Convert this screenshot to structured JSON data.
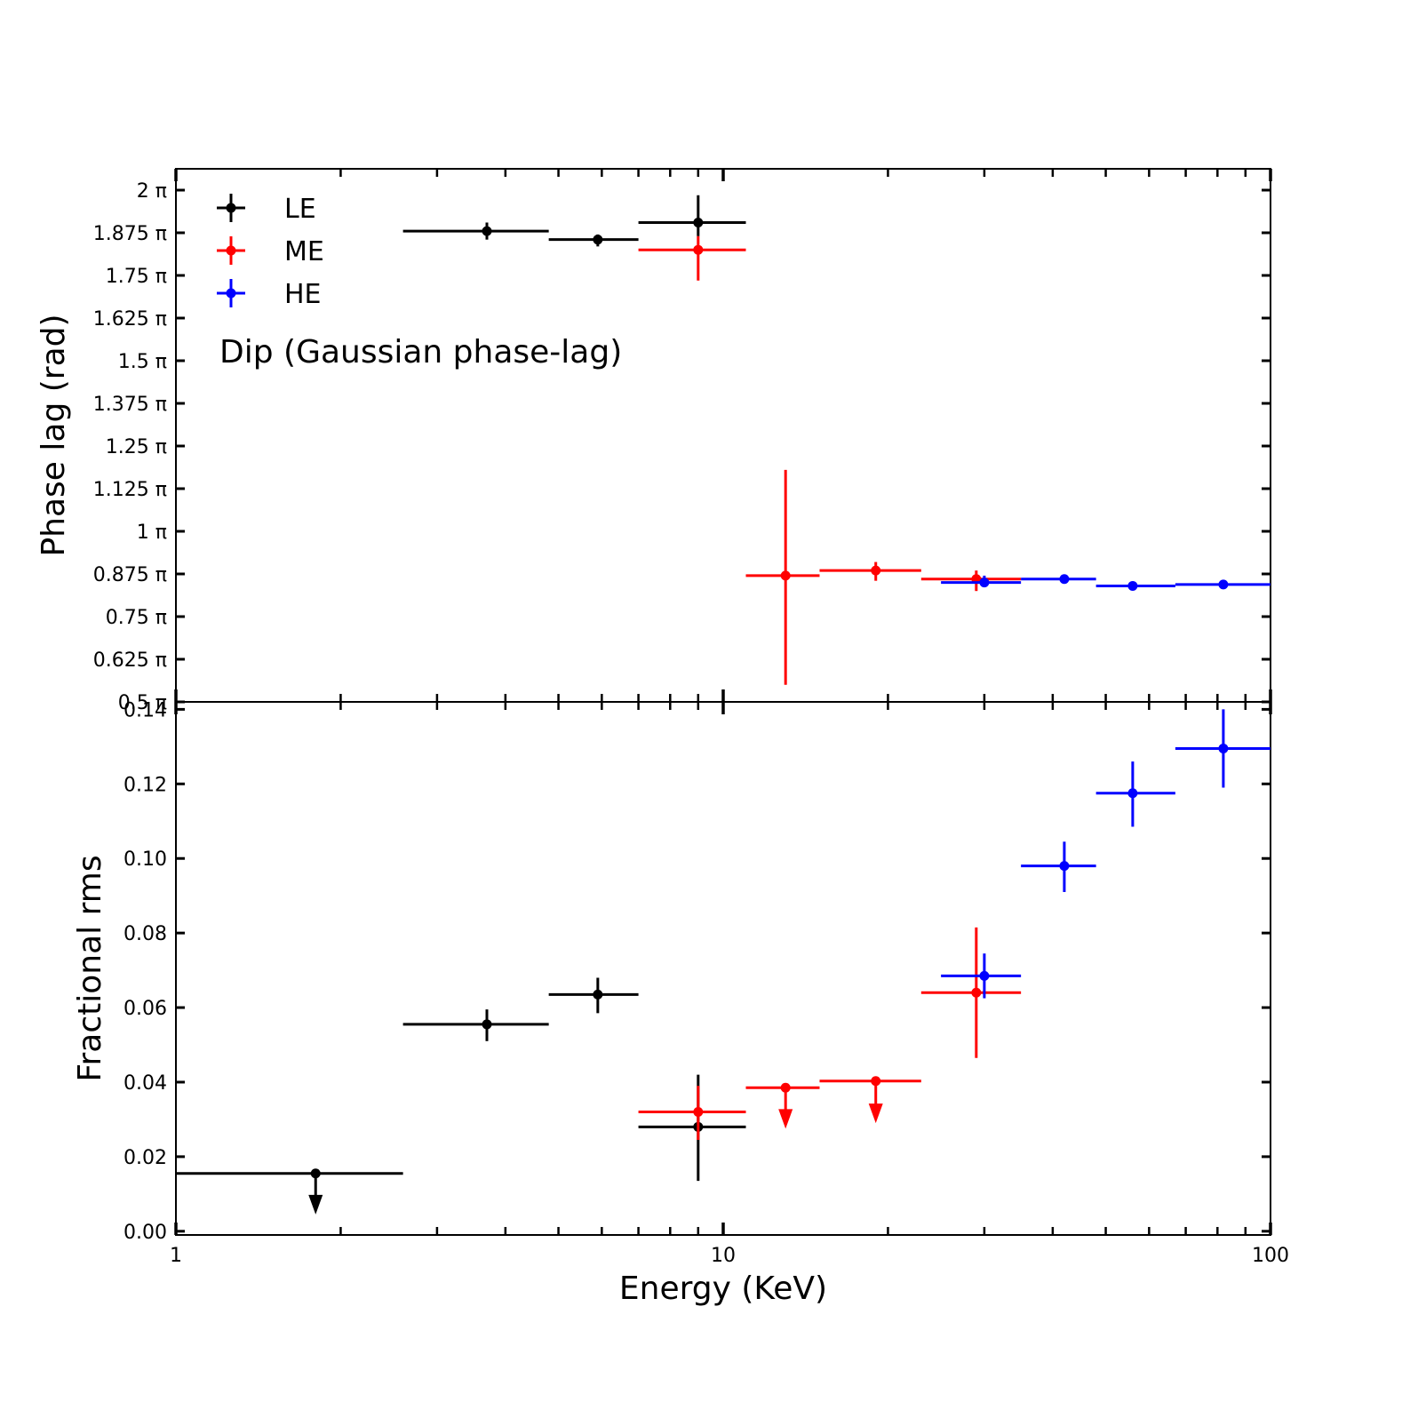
{
  "chart_data": [
    {
      "type": "scatter",
      "panel": "top",
      "ylabel": "Phase lag (rad)",
      "xscale": "log",
      "xlim": [
        1,
        100
      ],
      "ylim": [
        0.5,
        2.0625
      ],
      "y_unit": "π",
      "yticks": [
        0.5,
        0.625,
        0.75,
        0.875,
        1,
        1.125,
        1.25,
        1.375,
        1.5,
        1.625,
        1.75,
        1.875,
        2
      ],
      "ytick_labels": [
        "0.5 π",
        "0.625 π",
        "0.75 π",
        "0.875 π",
        "1 π",
        "1.125 π",
        "1.25 π",
        "1.375 π",
        "1.5 π",
        "1.625 π",
        "1.75 π",
        "1.875 π",
        "2 π"
      ],
      "annotation": "Dip (Gaussian phase-lag)",
      "legend": {
        "position": "top-left",
        "entries": [
          "LE",
          "ME",
          "HE"
        ]
      },
      "series": [
        {
          "name": "LE",
          "color": "#000000",
          "points": [
            {
              "x": 3.7,
              "xlo": 2.6,
              "xhi": 4.8,
              "y": 1.88,
              "ylo": 1.855,
              "yhi": 1.905
            },
            {
              "x": 5.9,
              "xlo": 4.8,
              "xhi": 7.0,
              "y": 1.855,
              "ylo": 1.835,
              "yhi": 1.87
            },
            {
              "x": 9.0,
              "xlo": 7.0,
              "xhi": 11.0,
              "y": 1.905,
              "ylo": 1.865,
              "yhi": 1.985
            }
          ]
        },
        {
          "name": "ME",
          "color": "#ff0000",
          "points": [
            {
              "x": 9.0,
              "xlo": 7.0,
              "xhi": 11.0,
              "y": 1.825,
              "ylo": 1.735,
              "yhi": 1.865
            },
            {
              "x": 13.0,
              "xlo": 11.0,
              "xhi": 15.0,
              "y": 0.87,
              "ylo": 0.55,
              "yhi": 1.18
            },
            {
              "x": 19.0,
              "xlo": 15.0,
              "xhi": 23.0,
              "y": 0.885,
              "ylo": 0.855,
              "yhi": 0.91
            },
            {
              "x": 29.0,
              "xlo": 23.0,
              "xhi": 35.0,
              "y": 0.86,
              "ylo": 0.825,
              "yhi": 0.885
            }
          ]
        },
        {
          "name": "HE",
          "color": "#0000ff",
          "points": [
            {
              "x": 30.0,
              "xlo": 25.0,
              "xhi": 35.0,
              "y": 0.85,
              "ylo": 0.84,
              "yhi": 0.87
            },
            {
              "x": 42.0,
              "xlo": 35.0,
              "xhi": 48.0,
              "y": 0.86,
              "ylo": 0.853,
              "yhi": 0.867
            },
            {
              "x": 56.0,
              "xlo": 48.0,
              "xhi": 67.0,
              "y": 0.84,
              "ylo": 0.832,
              "yhi": 0.849
            },
            {
              "x": 82.0,
              "xlo": 67.0,
              "xhi": 100.0,
              "y": 0.844,
              "ylo": 0.836,
              "yhi": 0.853
            }
          ]
        }
      ]
    },
    {
      "type": "scatter",
      "panel": "bottom",
      "xlabel": "Energy (KeV)",
      "ylabel": "Fractional rms",
      "xscale": "log",
      "xlim": [
        1,
        100
      ],
      "ylim": [
        -0.001,
        0.142
      ],
      "xticks": [
        1,
        10,
        100
      ],
      "xtick_labels": [
        "1",
        "10",
        "100"
      ],
      "yticks": [
        0.0,
        0.02,
        0.04,
        0.06,
        0.08,
        0.1,
        0.12,
        0.14
      ],
      "ytick_labels": [
        "0.00",
        "0.02",
        "0.04",
        "0.06",
        "0.08",
        "0.10",
        "0.12",
        "0.14"
      ],
      "series": [
        {
          "name": "LE",
          "color": "#000000",
          "points": [
            {
              "x": 1.8,
              "xlo": 1.0,
              "xhi": 2.6,
              "y": 0.0155,
              "upper_limit": true,
              "arrow_to": 0.0045
            },
            {
              "x": 3.7,
              "xlo": 2.6,
              "xhi": 4.8,
              "y": 0.0555,
              "ylo": 0.051,
              "yhi": 0.0595
            },
            {
              "x": 5.9,
              "xlo": 4.8,
              "xhi": 7.0,
              "y": 0.0635,
              "ylo": 0.0585,
              "yhi": 0.068
            },
            {
              "x": 9.0,
              "xlo": 7.0,
              "xhi": 11.0,
              "y": 0.028,
              "ylo": 0.0135,
              "yhi": 0.042
            }
          ]
        },
        {
          "name": "ME",
          "color": "#ff0000",
          "points": [
            {
              "x": 9.0,
              "xlo": 7.0,
              "xhi": 11.0,
              "y": 0.032,
              "ylo": 0.0245,
              "yhi": 0.039
            },
            {
              "x": 13.0,
              "xlo": 11.0,
              "xhi": 15.0,
              "y": 0.0385,
              "upper_limit": true,
              "arrow_to": 0.0275
            },
            {
              "x": 19.0,
              "xlo": 15.0,
              "xhi": 23.0,
              "y": 0.0403,
              "upper_limit": true,
              "arrow_to": 0.029
            },
            {
              "x": 29.0,
              "xlo": 23.0,
              "xhi": 35.0,
              "y": 0.064,
              "ylo": 0.0465,
              "yhi": 0.0815
            }
          ]
        },
        {
          "name": "HE",
          "color": "#0000ff",
          "points": [
            {
              "x": 30.0,
              "xlo": 25.0,
              "xhi": 35.0,
              "y": 0.0685,
              "ylo": 0.0625,
              "yhi": 0.0745
            },
            {
              "x": 42.0,
              "xlo": 35.0,
              "xhi": 48.0,
              "y": 0.098,
              "ylo": 0.091,
              "yhi": 0.1045
            },
            {
              "x": 56.0,
              "xlo": 48.0,
              "xhi": 67.0,
              "y": 0.1175,
              "ylo": 0.1085,
              "yhi": 0.126
            },
            {
              "x": 82.0,
              "xlo": 67.0,
              "xhi": 100.0,
              "y": 0.1295,
              "ylo": 0.119,
              "yhi": 0.14
            }
          ]
        }
      ]
    }
  ]
}
